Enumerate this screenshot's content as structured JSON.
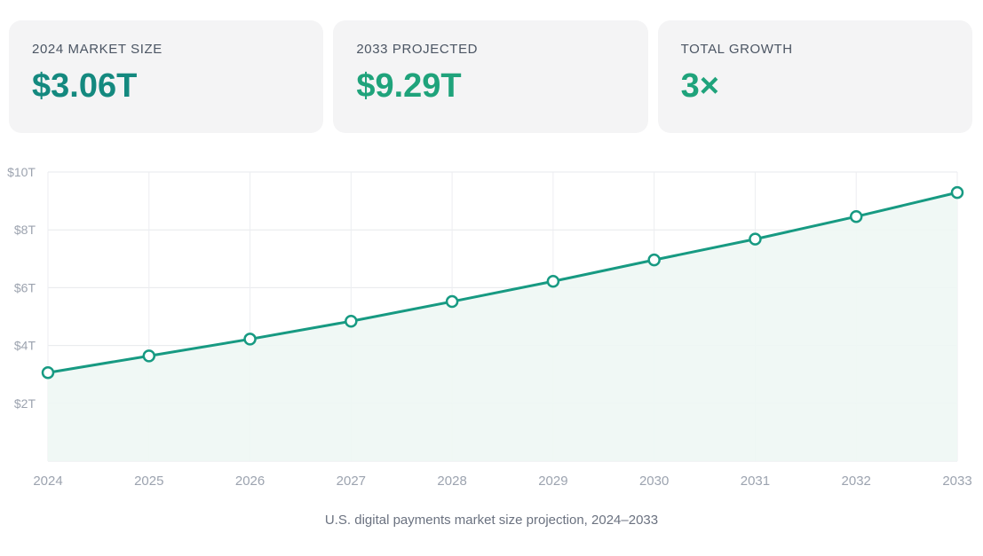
{
  "stats": [
    {
      "label": "2024 MARKET SIZE",
      "value": "$3.06T",
      "color": "#14897f"
    },
    {
      "label": "2033 PROJECTED",
      "value": "$9.29T",
      "color": "#1fa37b"
    },
    {
      "label": "TOTAL GROWTH",
      "value": "3×",
      "color": "#1fa37b"
    }
  ],
  "caption": "U.S. digital payments market size projection, 2024–2033",
  "chart_data": {
    "type": "area",
    "x": [
      "2024",
      "2025",
      "2026",
      "2027",
      "2028",
      "2029",
      "2030",
      "2031",
      "2032",
      "2033"
    ],
    "series": [
      {
        "values": [
          3.06,
          3.64,
          4.22,
          4.84,
          5.52,
          6.22,
          6.96,
          7.68,
          8.46,
          9.29
        ]
      }
    ],
    "ylim": [
      0,
      10
    ],
    "yticks": [
      2,
      4,
      6,
      8,
      10
    ],
    "ytick_labels": [
      "$2T",
      "$4T",
      "$6T",
      "$8T",
      "$10T"
    ],
    "grid": true,
    "line_color": "#179a82",
    "fill_color": "#eef7f4"
  }
}
